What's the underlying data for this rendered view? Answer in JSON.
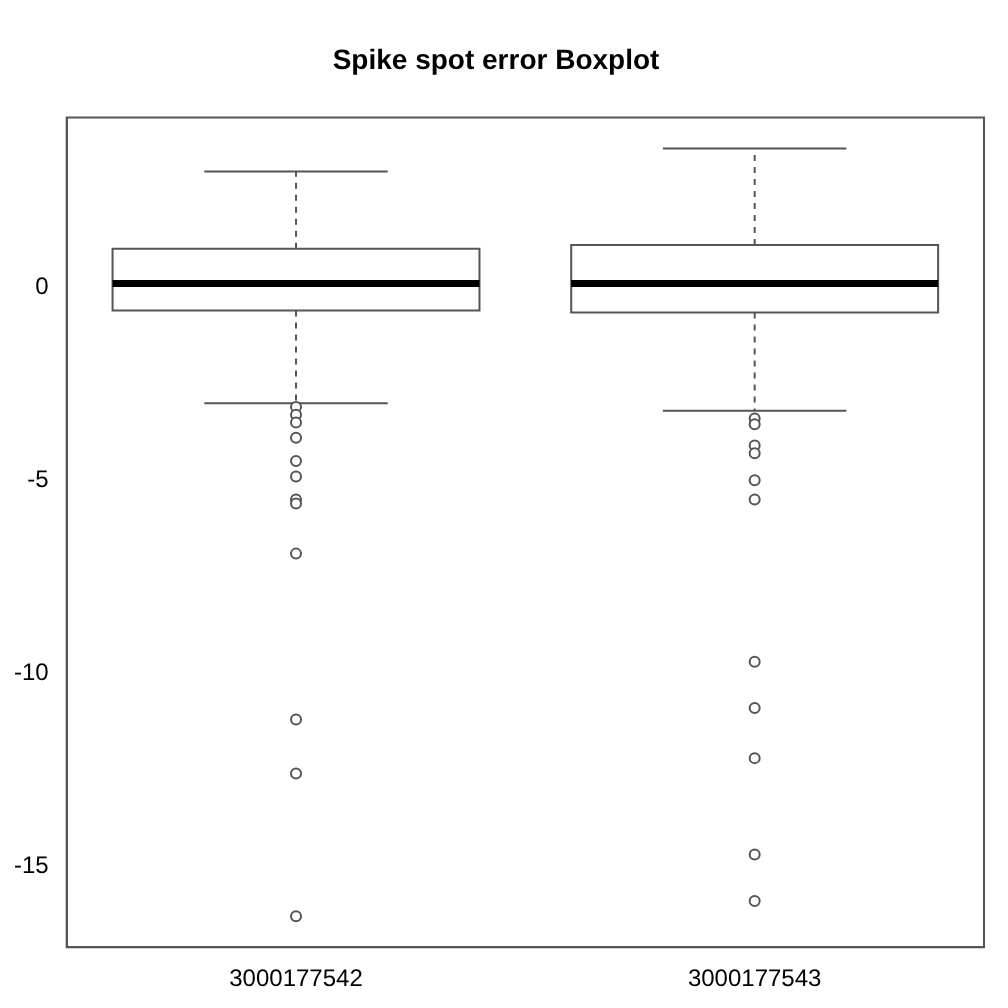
{
  "chart_data": {
    "type": "box",
    "title": "Spike spot error Boxplot",
    "categories": [
      "3000177542",
      "3000177543"
    ],
    "boxes": [
      {
        "low": -3.0,
        "q1": -0.6,
        "median": 0.1,
        "q3": 1.0,
        "high": 3.0,
        "outliers": [
          -3.1,
          -3.3,
          -3.5,
          -3.9,
          -4.5,
          -4.9,
          -5.5,
          -5.6,
          -6.9,
          -11.2,
          -12.6,
          -16.3
        ]
      },
      {
        "low": -3.2,
        "q1": -0.65,
        "median": 0.1,
        "q3": 1.1,
        "high": 3.6,
        "outliers": [
          -3.4,
          -3.55,
          -4.1,
          -4.3,
          -5.0,
          -5.5,
          -9.7,
          -10.9,
          -12.2,
          -14.7,
          -15.9
        ]
      }
    ],
    "ylim": [
      -17.1,
      4.4
    ],
    "yticks": [
      -15,
      -10,
      -5,
      0
    ],
    "grid": false,
    "marker": "circle",
    "legend": false
  }
}
